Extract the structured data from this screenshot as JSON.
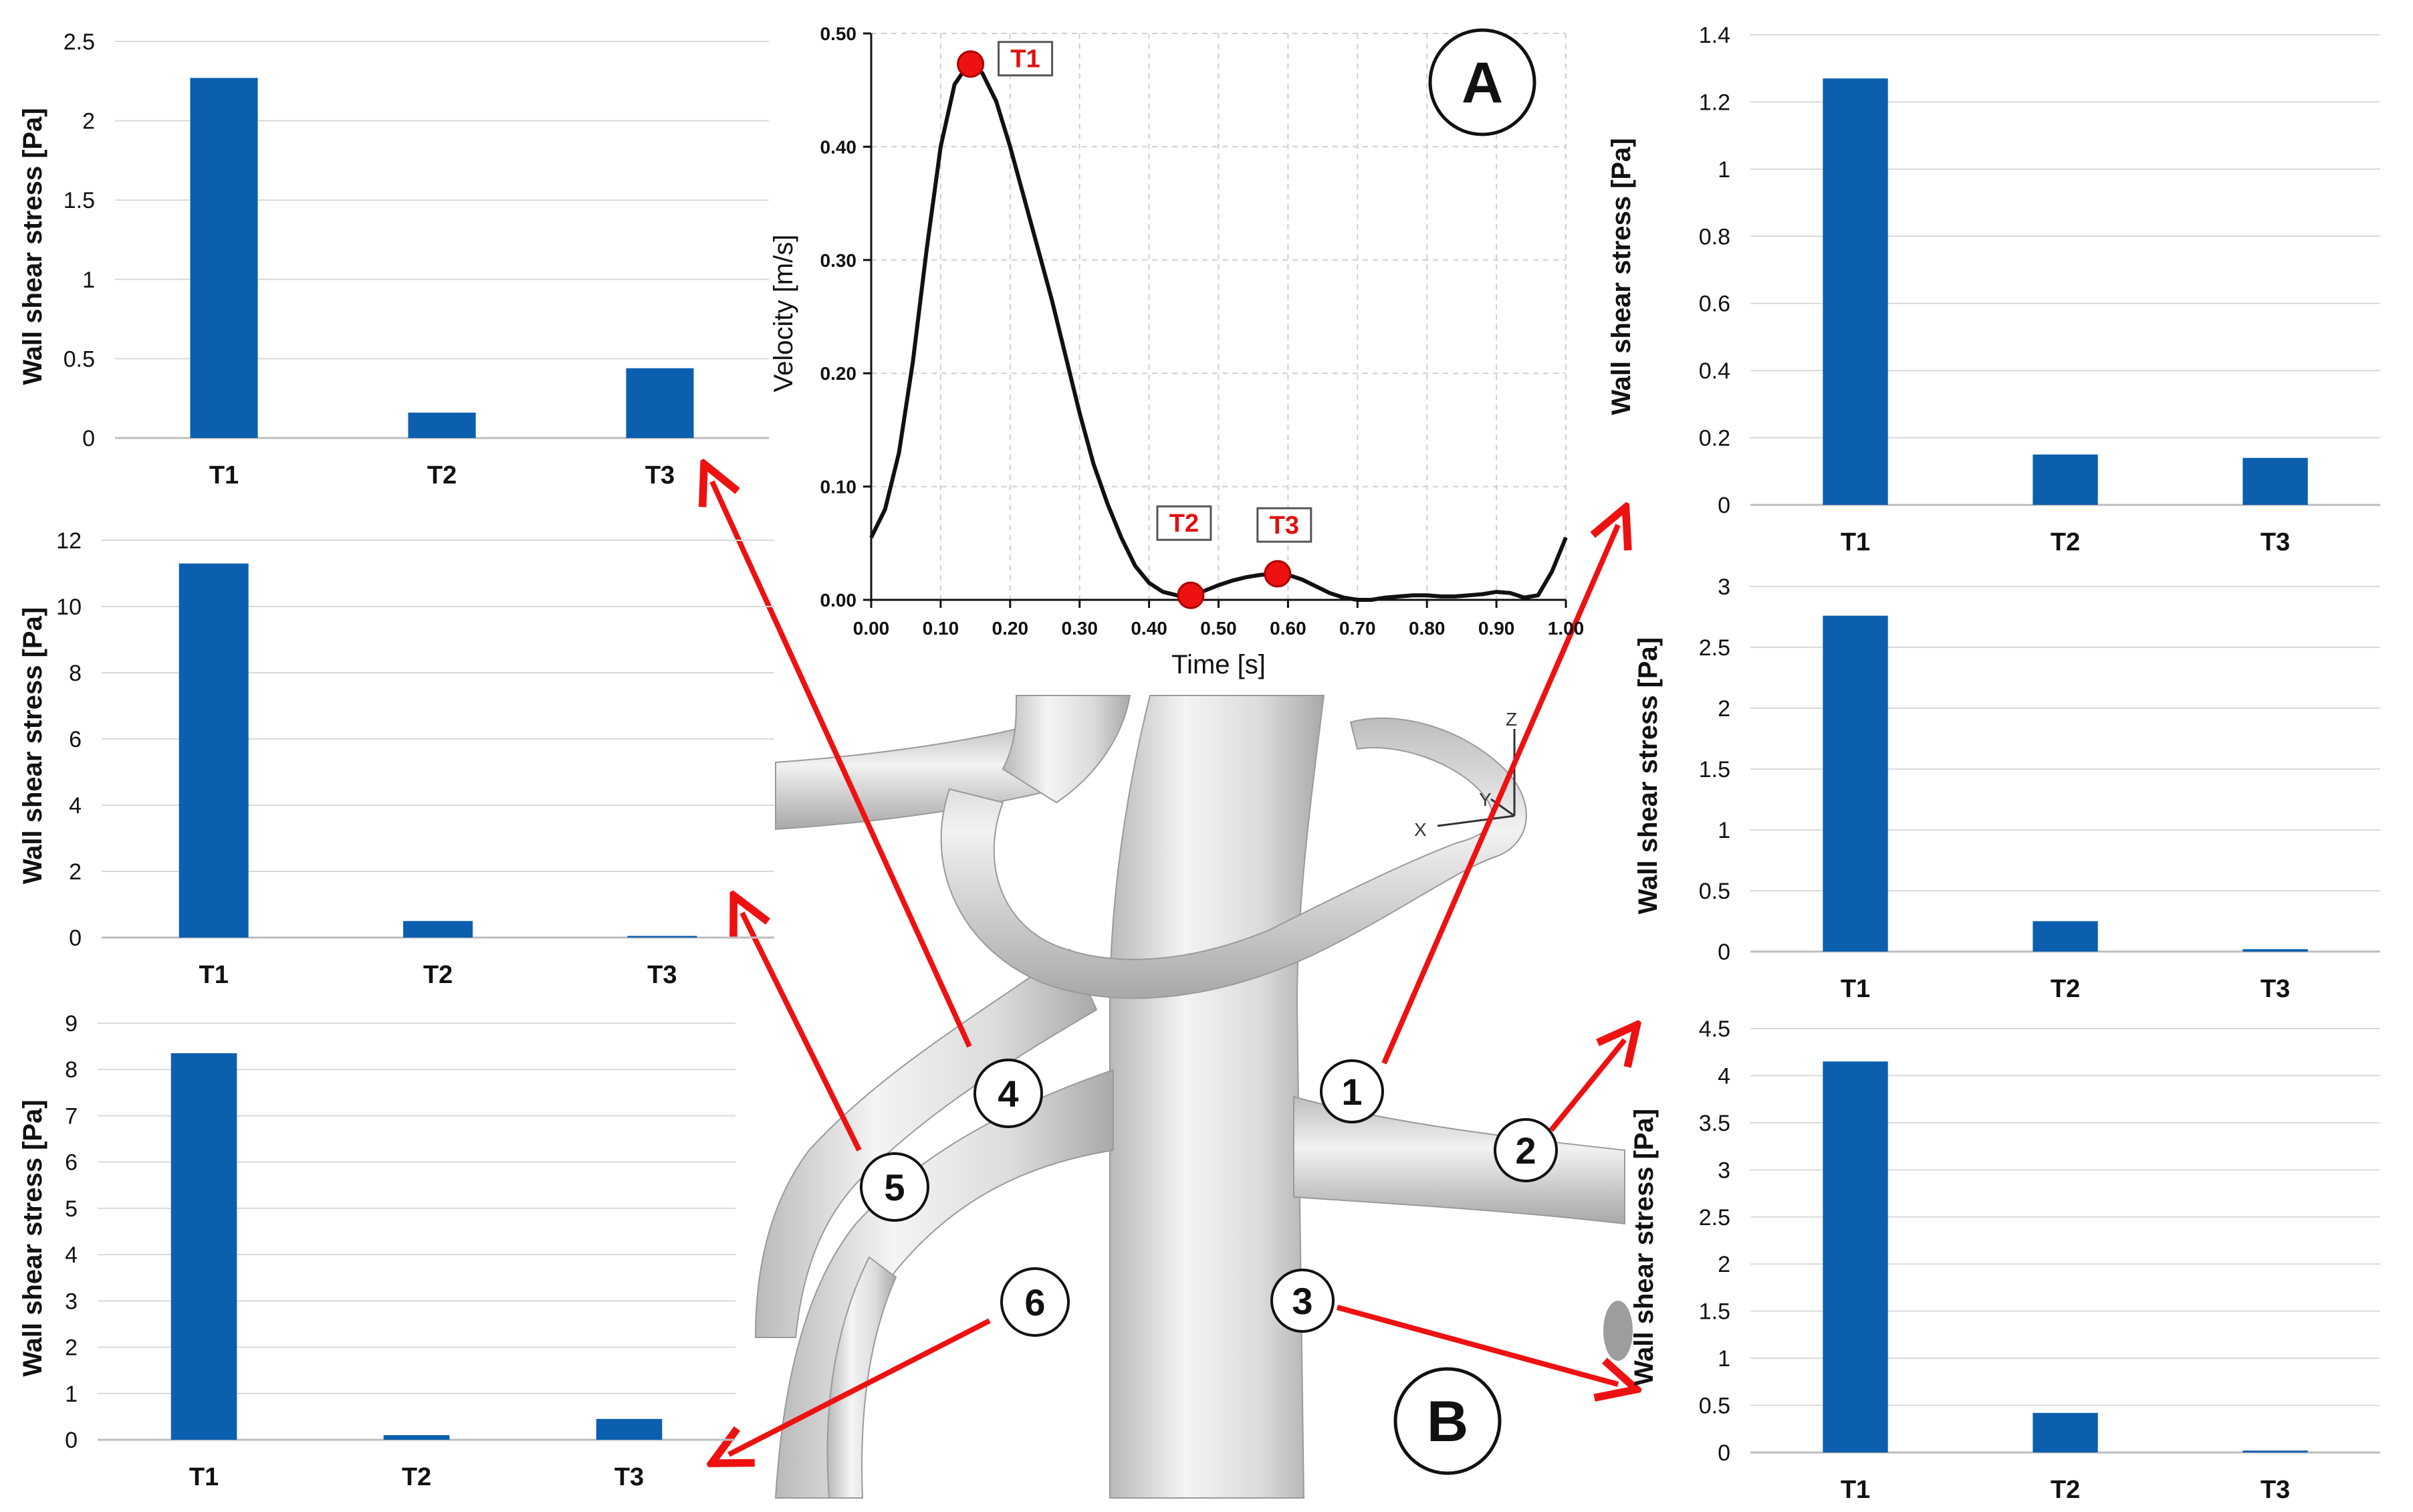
{
  "chart_data": [
    {
      "id": "velocity",
      "type": "line",
      "xlabel": "Time [s]",
      "ylabel": "Velocity [m/s]",
      "xlim": [
        0,
        1
      ],
      "ylim": [
        0,
        0.5
      ],
      "xticks": [
        "0.00",
        "0.10",
        "0.20",
        "0.30",
        "0.40",
        "0.50",
        "0.60",
        "0.70",
        "0.80",
        "0.90",
        "1.00"
      ],
      "yticks": [
        "0.00",
        "0.10",
        "0.20",
        "0.30",
        "0.40",
        "0.50"
      ],
      "grid": true,
      "panel_label": "A",
      "series": [
        {
          "x": [
            0.0,
            0.02,
            0.04,
            0.06,
            0.08,
            0.1,
            0.12,
            0.14,
            0.16,
            0.18,
            0.2,
            0.22,
            0.24,
            0.26,
            0.28,
            0.3,
            0.32,
            0.34,
            0.36,
            0.38,
            0.4,
            0.42,
            0.44,
            0.46,
            0.48,
            0.5,
            0.52,
            0.54,
            0.56,
            0.58,
            0.6,
            0.62,
            0.64,
            0.66,
            0.68,
            0.7,
            0.72,
            0.74,
            0.76,
            0.78,
            0.8,
            0.82,
            0.84,
            0.86,
            0.88,
            0.9,
            0.92,
            0.94,
            0.96,
            0.98,
            1.0
          ],
          "y": [
            0.055,
            0.08,
            0.13,
            0.21,
            0.31,
            0.4,
            0.455,
            0.473,
            0.465,
            0.44,
            0.4,
            0.355,
            0.31,
            0.265,
            0.215,
            0.165,
            0.12,
            0.085,
            0.055,
            0.03,
            0.015,
            0.007,
            0.004,
            0.004,
            0.008,
            0.013,
            0.017,
            0.02,
            0.022,
            0.023,
            0.022,
            0.018,
            0.012,
            0.006,
            0.002,
            0.0,
            0.0,
            0.002,
            0.003,
            0.004,
            0.004,
            0.003,
            0.003,
            0.004,
            0.005,
            0.007,
            0.006,
            0.002,
            0.004,
            0.025,
            0.055
          ]
        }
      ],
      "markers": [
        {
          "label": "T1",
          "x": 0.143,
          "y": 0.473
        },
        {
          "label": "T2",
          "x": 0.46,
          "y": 0.004
        },
        {
          "label": "T3",
          "x": 0.585,
          "y": 0.023
        }
      ]
    },
    {
      "id": "wss1",
      "type": "bar",
      "location": "1",
      "categories": [
        "T1",
        "T2",
        "T3"
      ],
      "values": [
        1.27,
        0.15,
        0.14
      ],
      "ylabel": "Wall shear stress [Pa]",
      "ylim": [
        0,
        1.4
      ],
      "yticks": [
        "0",
        "0.2",
        "0.4",
        "0.6",
        "0.8",
        "1",
        "1.2",
        "1.4"
      ],
      "color": "#0b5fae"
    },
    {
      "id": "wss2",
      "type": "bar",
      "location": "2",
      "categories": [
        "T1",
        "T2",
        "T3"
      ],
      "values": [
        2.76,
        0.25,
        0.02
      ],
      "ylabel": "Wall shear stress [Pa]",
      "ylim": [
        0,
        3
      ],
      "yticks": [
        "0",
        "0.5",
        "1",
        "1.5",
        "2",
        "2.5",
        "3"
      ],
      "color": "#0b5fae"
    },
    {
      "id": "wss3",
      "type": "bar",
      "location": "3",
      "categories": [
        "T1",
        "T2",
        "T3"
      ],
      "values": [
        4.15,
        0.42,
        0.02
      ],
      "ylabel": "Wall shear stress [Pa]",
      "ylim": [
        0,
        4.5
      ],
      "yticks": [
        "0",
        "0.5",
        "1",
        "1.5",
        "2",
        "2.5",
        "3",
        "3.5",
        "4",
        "4.5"
      ],
      "color": "#0b5fae"
    },
    {
      "id": "wss4",
      "type": "bar",
      "location": "4",
      "categories": [
        "T1",
        "T2",
        "T3"
      ],
      "values": [
        2.27,
        0.16,
        0.44
      ],
      "ylabel": "Wall shear stress [Pa]",
      "ylim": [
        0,
        2.5
      ],
      "yticks": [
        "0",
        "0.5",
        "1",
        "1.5",
        "2",
        "2.5"
      ],
      "color": "#0b5fae"
    },
    {
      "id": "wss5",
      "type": "bar",
      "location": "5",
      "categories": [
        "T1",
        "T2",
        "T3"
      ],
      "values": [
        11.3,
        0.5,
        0.05
      ],
      "ylabel": "Wall shear stress [Pa]",
      "ylim": [
        0,
        12
      ],
      "yticks": [
        "0",
        "2",
        "4",
        "6",
        "8",
        "10",
        "12"
      ],
      "color": "#0b5fae"
    },
    {
      "id": "wss6",
      "type": "bar",
      "location": "6",
      "categories": [
        "T1",
        "T2",
        "T3"
      ],
      "values": [
        8.35,
        0.1,
        0.45
      ],
      "ylabel": "Wall shear stress  [Pa]",
      "ylim": [
        0,
        9
      ],
      "yticks": [
        "0",
        "1",
        "2",
        "3",
        "4",
        "5",
        "6",
        "7",
        "8",
        "9"
      ],
      "color": "#0b5fae"
    }
  ],
  "model": {
    "panel_label": "B",
    "points": [
      "1",
      "2",
      "3",
      "4",
      "5",
      "6"
    ],
    "axis_labels": [
      "Z",
      "Y",
      "X"
    ],
    "arrow_color": "#ee1111"
  }
}
